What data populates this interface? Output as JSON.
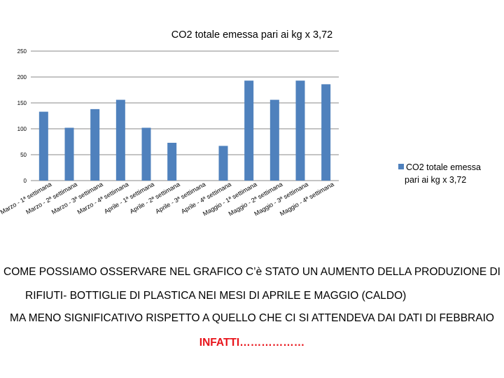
{
  "chart_data": {
    "type": "bar",
    "title": "CO2 totale emessa pari ai kg x 3,72",
    "xlabel": "",
    "ylabel": "",
    "ylim": [
      0,
      250
    ],
    "yticks": [
      0,
      50,
      100,
      150,
      200,
      250
    ],
    "grid": true,
    "legend_position": "right",
    "bar_color": "#4f81bd",
    "categories": [
      "Marzo - 1ª settimana",
      "Marzo - 2ª settimana",
      "Marzo - 3ª settimana",
      "Marzo - 4ª settimana",
      "Aprile - 1ª settimana",
      "Aprile - 2ª settimana",
      "Aprile - 3ª settimana",
      "Aprile - 4ª settimana",
      "Maggio - 1ª settimana",
      "Maggio - 2ª settimana",
      "Maggio - 3ª settimana",
      "Maggio - 4ª settimana"
    ],
    "series": [
      {
        "name": "CO2 totale emessa pari ai kg x 3,72",
        "values": [
          133,
          102,
          138,
          156,
          102,
          73,
          0,
          67,
          193,
          156,
          193,
          186
        ]
      }
    ]
  },
  "text": {
    "line1": "COME POSSIAMO OSSERVARE NEL GRAFICO C’è STATO UN AUMENTO DELLA PRODUZIONE DI",
    "line2": "RIFIUTI- BOTTIGLIE DI PLASTICA NEI MESI DI APRILE E MAGGIO (CALDO)",
    "line3": "MA MENO SIGNIFICATIVO RISPETTO A QUELLO CHE CI SI ATTENDEVA DAI DATI DI FEBBRAIO",
    "line4": "INFATTI………………"
  }
}
